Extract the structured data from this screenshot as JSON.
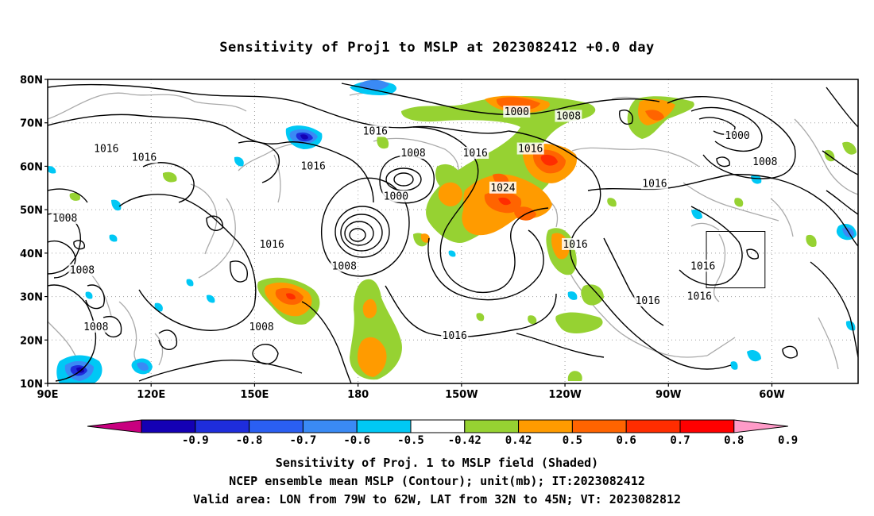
{
  "title": "Sensitivity of Proj1 to MSLP at 2023082412 +0.0 day",
  "lat_labels": [
    "80N",
    "70N",
    "60N",
    "50N",
    "40N",
    "30N",
    "20N",
    "10N"
  ],
  "lon_labels": [
    "90E",
    "120E",
    "150E",
    "180",
    "150W",
    "120W",
    "90W",
    "60W"
  ],
  "colorbar": {
    "labels": [
      "-0.9",
      "-0.8",
      "-0.7",
      "-0.6",
      "-0.5",
      "-0.42",
      "0.42",
      "0.5",
      "0.6",
      "0.7",
      "0.8",
      "0.9"
    ],
    "colors": [
      "#c8007f",
      "#1400b4",
      "#1e2ddc",
      "#2a5ff2",
      "#3a8af5",
      "#00c8f5",
      "#ffffff",
      "#96d232",
      "#ff9b00",
      "#ff6400",
      "#ff2d00",
      "#ff0000",
      "#ff9bc8"
    ]
  },
  "contour_labels": [
    {
      "text": "1000",
      "lon": 226,
      "lat": 72.5
    },
    {
      "text": "1008",
      "lon": 241,
      "lat": 71.5
    },
    {
      "text": "1000",
      "lon": 290,
      "lat": 67
    },
    {
      "text": "1008",
      "lon": 298,
      "lat": 61
    },
    {
      "text": "1016",
      "lon": 185,
      "lat": 68
    },
    {
      "text": "1016",
      "lon": 107,
      "lat": 64
    },
    {
      "text": "1016",
      "lon": 118,
      "lat": 62
    },
    {
      "text": "1016",
      "lon": 167,
      "lat": 60
    },
    {
      "text": "1008",
      "lon": 196,
      "lat": 63
    },
    {
      "text": "1016",
      "lon": 214,
      "lat": 63
    },
    {
      "text": "1016",
      "lon": 230,
      "lat": 64
    },
    {
      "text": "1024",
      "lon": 222,
      "lat": 55
    },
    {
      "text": "1000",
      "lon": 191,
      "lat": 53
    },
    {
      "text": "1016",
      "lon": 266,
      "lat": 56
    },
    {
      "text": "1008",
      "lon": 95,
      "lat": 48
    },
    {
      "text": "1016",
      "lon": 155,
      "lat": 42
    },
    {
      "text": "1008",
      "lon": 176,
      "lat": 37
    },
    {
      "text": "1016",
      "lon": 243,
      "lat": 42
    },
    {
      "text": "1016",
      "lon": 280,
      "lat": 37
    },
    {
      "text": "1008",
      "lon": 100,
      "lat": 36
    },
    {
      "text": "1016",
      "lon": 264,
      "lat": 29
    },
    {
      "text": "1016",
      "lon": 279,
      "lat": 30
    },
    {
      "text": "1008",
      "lon": 104,
      "lat": 23
    },
    {
      "text": "1008",
      "lon": 152,
      "lat": 23
    },
    {
      "text": "1016",
      "lon": 208,
      "lat": 21
    }
  ],
  "valid_area": {
    "lon_min": -79,
    "lon_max": -62,
    "lat_min": 32,
    "lat_max": 45
  },
  "captions": [
    "Sensitivity of Proj. 1 to MSLP field (Shaded)",
    "NCEP ensemble mean MSLP (Contour); unit(mb); IT:2023082412",
    "Valid area: LON from 79W to 62W, LAT from 32N to 45N; VT: 2023082812"
  ]
}
